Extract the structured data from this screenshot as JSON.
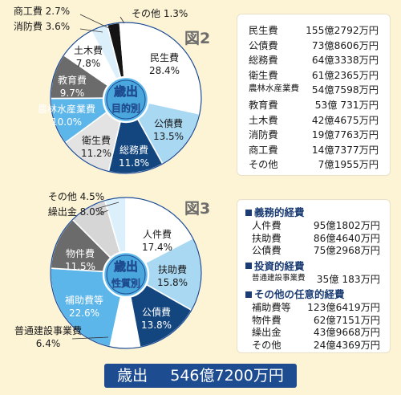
{
  "chart_data": [
    {
      "type": "pie",
      "figure_label": "図2",
      "center_label": [
        "歳出",
        "目的別"
      ],
      "slices": [
        {
          "name": "民生費",
          "value": 28.4,
          "label": "28.4%",
          "color": "#ffffff",
          "text_color": "#1a1a1a"
        },
        {
          "name": "公債費",
          "value": 13.5,
          "label": "13.5%",
          "color": "#a8d8f2",
          "text_color": "#1a1a1a"
        },
        {
          "name": "総務費",
          "value": 11.8,
          "label": "11.8%",
          "color": "#13457f",
          "text_color": "#ffffff"
        },
        {
          "name": "衛生費",
          "value": 11.2,
          "label": "11.2%",
          "color": "#e3e3e3",
          "text_color": "#1a1a1a"
        },
        {
          "name": "農林水産業費",
          "value": 10.0,
          "label": "10.0%",
          "color": "#5cb6ea",
          "text_color": "#ffffff"
        },
        {
          "name": "教育費",
          "value": 9.7,
          "label": "9.7%",
          "color": "#6b6b6b",
          "text_color": "#ffffff"
        },
        {
          "name": "土木費",
          "value": 7.8,
          "label": "7.8%",
          "color": "#ffffff",
          "text_color": "#1a1a1a"
        },
        {
          "name": "消防費",
          "value": 3.6,
          "label": "3.6%",
          "color": "#dcf0fb",
          "text_color": "#1a1a1a"
        },
        {
          "name": "商工費",
          "value": 2.7,
          "label": "2.7%",
          "color": "#141414",
          "text_color": "#1a1a1a"
        },
        {
          "name": "その他",
          "value": 1.3,
          "label": "1.3%",
          "color": "#ffffff",
          "text_color": "#1a1a1a"
        }
      ]
    },
    {
      "type": "pie",
      "figure_label": "図3",
      "center_label": [
        "歳出",
        "性質別"
      ],
      "slices": [
        {
          "name": "人件費",
          "value": 17.4,
          "label": "17.4%",
          "color": "#ffffff",
          "text_color": "#1a1a1a"
        },
        {
          "name": "扶助費",
          "value": 15.8,
          "label": "15.8%",
          "color": "#a8d8f2",
          "text_color": "#1a1a1a"
        },
        {
          "name": "公債費",
          "value": 13.8,
          "label": "13.8%",
          "color": "#13457f",
          "text_color": "#ffffff"
        },
        {
          "name": "普通建設事業費",
          "value": 6.4,
          "label": "6.4%",
          "color": "#ffffff",
          "text_color": "#1a1a1a"
        },
        {
          "name": "補助費等",
          "value": 22.6,
          "label": "22.6%",
          "color": "#5cb6ea",
          "text_color": "#ffffff"
        },
        {
          "name": "物件費",
          "value": 11.5,
          "label": "11.5%",
          "color": "#6b6b6b",
          "text_color": "#ffffff"
        },
        {
          "name": "繰出金",
          "value": 8.0,
          "label": "8.0%",
          "color": "#d6d6d6",
          "text_color": "#1a1a1a"
        },
        {
          "name": "その他",
          "value": 4.5,
          "label": "4.5%",
          "color": "#dcf0fb",
          "text_color": "#1a1a1a"
        }
      ]
    }
  ],
  "fig2_table": [
    {
      "name": "民生費",
      "value": "155億2792万円"
    },
    {
      "name": "公債費",
      "value": "73億8606万円"
    },
    {
      "name": "総務費",
      "value": "64億3338万円"
    },
    {
      "name": "衛生費",
      "value": "61億2365万円"
    },
    {
      "name": "農林水産業費",
      "value": "54億7598万円"
    },
    {
      "name": "教育費",
      "value": "53億 731万円"
    },
    {
      "name": "土木費",
      "value": "42億4675万円"
    },
    {
      "name": "消防費",
      "value": "19億7763万円"
    },
    {
      "name": "商工費",
      "value": "14億7377万円"
    },
    {
      "name": "その他",
      "value": "7億1955万円"
    }
  ],
  "fig3_table": {
    "sections": [
      {
        "title": "義務的経費",
        "rows": [
          {
            "name": "人件費",
            "value": "95億1802万円"
          },
          {
            "name": "扶助費",
            "value": "86億4640万円"
          },
          {
            "name": "公債費",
            "value": "75億2968万円"
          }
        ]
      },
      {
        "title": "投資的経費",
        "rows": [
          {
            "name": "普通建設事業費",
            "value": "35億 183万円"
          }
        ]
      },
      {
        "title": "その他の任意的経費",
        "rows": [
          {
            "name": "補助費等",
            "value": "123億6419万円"
          },
          {
            "name": "物件費",
            "value": "62億7151万円"
          },
          {
            "name": "繰出金",
            "value": "43億9668万円"
          },
          {
            "name": "その他",
            "value": "24億4369万円"
          }
        ]
      }
    ]
  },
  "total": {
    "label": "歳出",
    "value": "546億7200万円"
  }
}
